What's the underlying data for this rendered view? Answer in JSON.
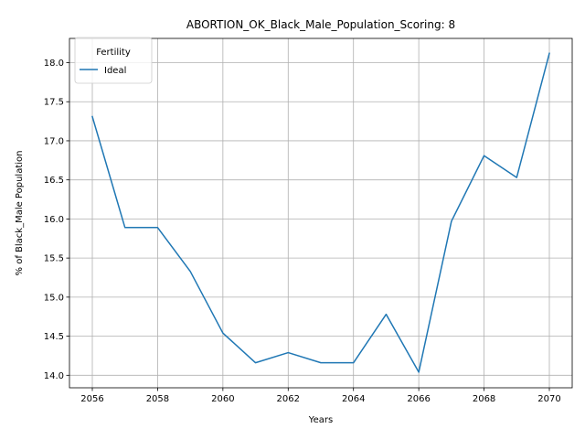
{
  "chart_data": {
    "type": "line",
    "title": "ABORTION_OK_Black_Male_Population_Scoring: 8",
    "xlabel": "Years",
    "ylabel": "% of Black_Male Population",
    "xlim": [
      2055.3,
      2070.7
    ],
    "ylim": [
      13.84,
      18.31
    ],
    "x_ticks": [
      2056,
      2058,
      2060,
      2062,
      2064,
      2066,
      2068,
      2070
    ],
    "y_ticks": [
      14.0,
      14.5,
      15.0,
      15.5,
      16.0,
      16.5,
      17.0,
      17.5,
      18.0
    ],
    "grid": true,
    "legend": {
      "title": "Fertility",
      "placement": "top-left"
    },
    "series": [
      {
        "name": "Ideal",
        "color": "#1f77b4",
        "x": [
          2056,
          2057,
          2058,
          2059,
          2060,
          2061,
          2062,
          2063,
          2064,
          2065,
          2066,
          2067,
          2068,
          2069,
          2070
        ],
        "values": [
          17.31,
          15.89,
          15.89,
          15.33,
          14.54,
          14.16,
          14.29,
          14.16,
          14.16,
          14.78,
          14.04,
          15.97,
          16.81,
          16.53,
          18.12
        ]
      }
    ]
  }
}
